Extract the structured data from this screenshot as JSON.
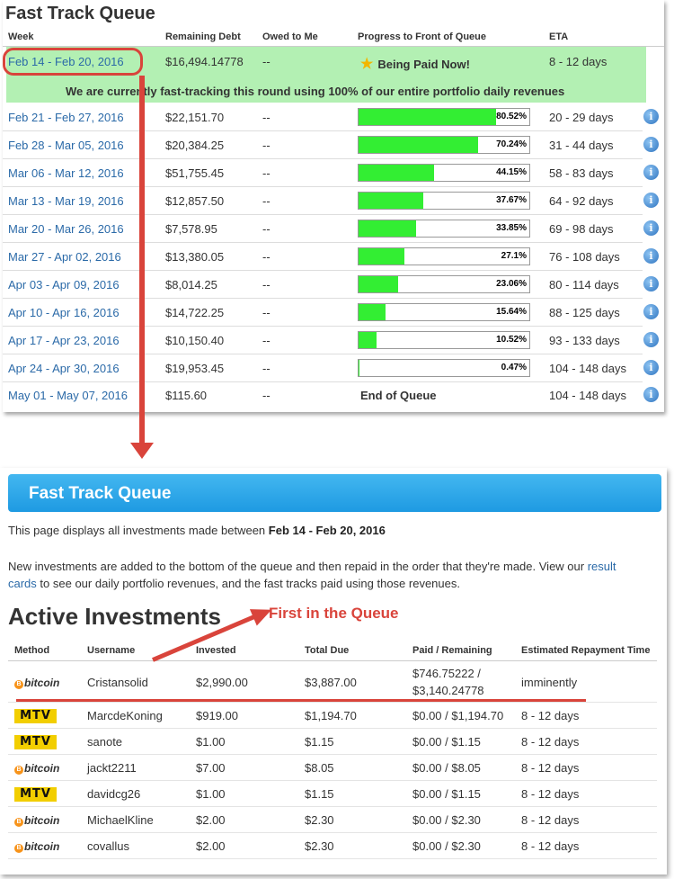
{
  "queue_table": {
    "title": "Fast Track Queue",
    "headers": [
      "Week",
      "Remaining Debt",
      "Owed to Me",
      "Progress to Front of Queue",
      "ETA"
    ],
    "first_row": {
      "week": "Feb 14 - Feb 20, 2016",
      "debt": "$16,494.14778",
      "owed": "--",
      "status": "Being Paid Now!",
      "eta": "8 - 12 days"
    },
    "notice": "We are currently fast-tracking this round using 100% of our entire portfolio daily revenues",
    "rows": [
      {
        "week": "Feb 21 - Feb 27, 2016",
        "debt": "$22,151.70",
        "owed": "--",
        "progress": 80.52,
        "progress_label": "80.52%",
        "eta": "20 - 29 days"
      },
      {
        "week": "Feb 28 - Mar 05, 2016",
        "debt": "$20,384.25",
        "owed": "--",
        "progress": 70.24,
        "progress_label": "70.24%",
        "eta": "31 - 44 days"
      },
      {
        "week": "Mar 06 - Mar 12, 2016",
        "debt": "$51,755.45",
        "owed": "--",
        "progress": 44.15,
        "progress_label": "44.15%",
        "eta": "58 - 83 days"
      },
      {
        "week": "Mar 13 - Mar 19, 2016",
        "debt": "$12,857.50",
        "owed": "--",
        "progress": 37.67,
        "progress_label": "37.67%",
        "eta": "64 - 92 days"
      },
      {
        "week": "Mar 20 - Mar 26, 2016",
        "debt": "$7,578.95",
        "owed": "--",
        "progress": 33.85,
        "progress_label": "33.85%",
        "eta": "69 - 98 days"
      },
      {
        "week": "Mar 27 - Apr 02, 2016",
        "debt": "$13,380.05",
        "owed": "--",
        "progress": 27.1,
        "progress_label": "27.1%",
        "eta": "76 - 108 days"
      },
      {
        "week": "Apr 03 - Apr 09, 2016",
        "debt": "$8,014.25",
        "owed": "--",
        "progress": 23.06,
        "progress_label": "23.06%",
        "eta": "80 - 114 days"
      },
      {
        "week": "Apr 10 - Apr 16, 2016",
        "debt": "$14,722.25",
        "owed": "--",
        "progress": 15.64,
        "progress_label": "15.64%",
        "eta": "88 - 125 days"
      },
      {
        "week": "Apr 17 - Apr 23, 2016",
        "debt": "$10,150.40",
        "owed": "--",
        "progress": 10.52,
        "progress_label": "10.52%",
        "eta": "93 - 133 days"
      },
      {
        "week": "Apr 24 - Apr 30, 2016",
        "debt": "$19,953.45",
        "owed": "--",
        "progress": 0.47,
        "progress_label": "0.47%",
        "eta": "104 - 148 days"
      }
    ],
    "last_row": {
      "week": "May 01 - May 07, 2016",
      "debt": "$115.60",
      "owed": "--",
      "status": "End of Queue",
      "eta": "104 - 148 days"
    },
    "info_icon_glyph": "i"
  },
  "detail": {
    "banner_title": "Fast Track Queue",
    "intro_prefix": "This page displays all investments made between",
    "intro_range": "Feb 14 - Feb 20, 2016",
    "para_line1": "New investments are added to the bottom of the queue and then repaid in the order that they're made. View our",
    "para_link1": "result",
    "para_link2": "cards",
    "para_line2_rest": "to see our daily portfolio revenues, and the fast tracks paid using those revenues.",
    "section_title": "Active Investments",
    "callout": "First in the Queue",
    "headers": [
      "Method",
      "Username",
      "Invested",
      "Total Due",
      "Paid / Remaining",
      "Estimated Repayment Time"
    ],
    "investments": [
      {
        "method": "bitcoin",
        "username": "Cristansolid",
        "invested": "$2,990.00",
        "total_due": "$3,887.00",
        "paid_line1": "$746.75222 /",
        "paid_line2": "$3,140.24778",
        "eta": "imminently"
      },
      {
        "method": "MTV",
        "username": "MarcdeKoning",
        "invested": "$919.00",
        "total_due": "$1,194.70",
        "paid": "$0.00 / $1,194.70",
        "eta": "8 - 12 days"
      },
      {
        "method": "MTV",
        "username": "sanote",
        "invested": "$1.00",
        "total_due": "$1.15",
        "paid": "$0.00 / $1.15",
        "eta": "8 - 12 days"
      },
      {
        "method": "bitcoin",
        "username": "jackt2211",
        "invested": "$7.00",
        "total_due": "$8.05",
        "paid": "$0.00 / $8.05",
        "eta": "8 - 12 days"
      },
      {
        "method": "MTV",
        "username": "davidcg26",
        "invested": "$1.00",
        "total_due": "$1.15",
        "paid": "$0.00 / $1.15",
        "eta": "8 - 12 days"
      },
      {
        "method": "bitcoin",
        "username": "MichaelKline",
        "invested": "$2.00",
        "total_due": "$2.30",
        "paid": "$0.00 / $2.30",
        "eta": "8 - 12 days"
      },
      {
        "method": "bitcoin",
        "username": "covallus",
        "invested": "$2.00",
        "total_due": "$2.30",
        "paid": "$0.00 / $2.30",
        "eta": "8 - 12 days"
      }
    ],
    "method_labels": {
      "bitcoin": "bitcoin",
      "MTV": "MTV",
      "bitcoin_coin_glyph": "B"
    }
  },
  "colors": {
    "accent_red": "#d9443b",
    "progress_green": "#33ee33",
    "highlight_green": "#b3f0b3",
    "banner_blue": "#1e9ae2",
    "link_blue": "#2b6aa8",
    "mtv_yellow": "#f2ce00",
    "bitcoin_orange": "#f7931a"
  }
}
